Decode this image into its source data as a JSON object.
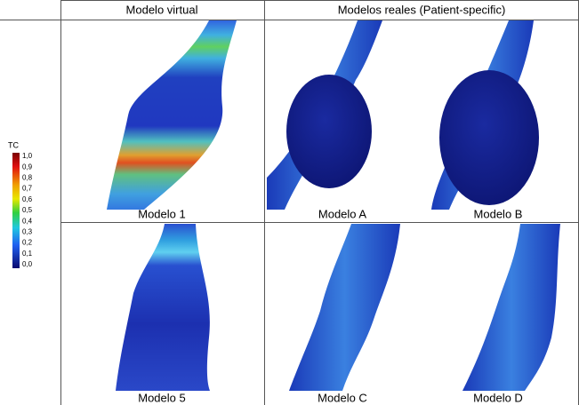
{
  "table": {
    "headers": [
      "Modelo virtual",
      "Modelos reales (Patient-specific)"
    ],
    "colorbar": {
      "title": "TC",
      "labels": [
        "1,0",
        "0,9",
        "0,8",
        "0,7",
        "0,6",
        "0,5",
        "0,4",
        "0,3",
        "0,2",
        "0,1",
        "0,0"
      ]
    },
    "panels": [
      "Modelo 1",
      "Modelo A",
      "Modelo B",
      "Modelo 5",
      "Modelo C",
      "Modelo D"
    ]
  }
}
